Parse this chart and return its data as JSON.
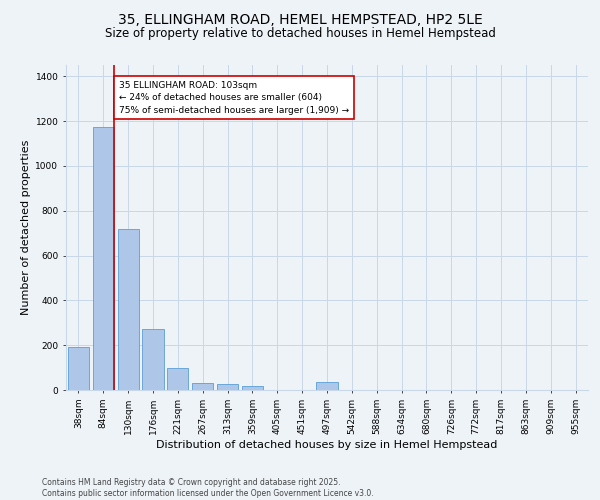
{
  "title_line1": "35, ELLINGHAM ROAD, HEMEL HEMPSTEAD, HP2 5LE",
  "title_line2": "Size of property relative to detached houses in Hemel Hempstead",
  "xlabel": "Distribution of detached houses by size in Hemel Hempstead",
  "ylabel": "Number of detached properties",
  "categories": [
    "38sqm",
    "84sqm",
    "130sqm",
    "176sqm",
    "221sqm",
    "267sqm",
    "313sqm",
    "359sqm",
    "405sqm",
    "451sqm",
    "497sqm",
    "542sqm",
    "588sqm",
    "634sqm",
    "680sqm",
    "726sqm",
    "772sqm",
    "817sqm",
    "863sqm",
    "909sqm",
    "955sqm"
  ],
  "values": [
    193,
    1175,
    718,
    270,
    100,
    33,
    27,
    17,
    0,
    0,
    35,
    0,
    0,
    0,
    0,
    0,
    0,
    0,
    0,
    0,
    0
  ],
  "bar_color": "#aec6e8",
  "bar_edge_color": "#5a9fd4",
  "grid_color": "#c8d8e8",
  "background_color": "#eef3f8",
  "vline_color": "#cc0000",
  "annotation_text": "35 ELLINGHAM ROAD: 103sqm\n← 24% of detached houses are smaller (604)\n75% of semi-detached houses are larger (1,909) →",
  "annotation_box_color": "#ffffff",
  "annotation_box_edge": "#cc0000",
  "footer": "Contains HM Land Registry data © Crown copyright and database right 2025.\nContains public sector information licensed under the Open Government Licence v3.0.",
  "ylim": [
    0,
    1450
  ],
  "yticks": [
    0,
    200,
    400,
    600,
    800,
    1000,
    1200,
    1400
  ],
  "title_fontsize": 10,
  "subtitle_fontsize": 8.5,
  "tick_fontsize": 6.5,
  "ylabel_fontsize": 8,
  "xlabel_fontsize": 8,
  "footer_fontsize": 5.5,
  "annotation_fontsize": 6.5
}
